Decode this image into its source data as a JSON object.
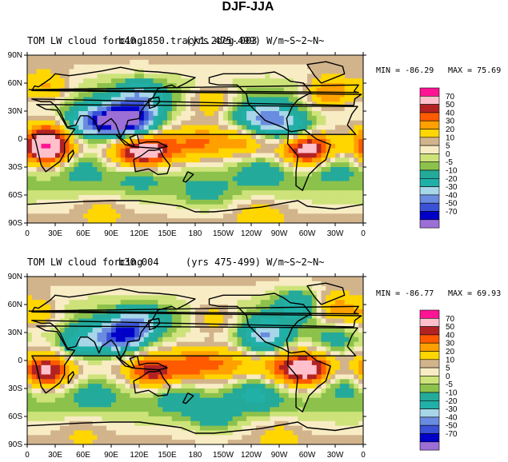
{
  "figure": {
    "title": "DJF-JJA"
  },
  "colors": {
    "levels": [
      -70,
      -60,
      -50,
      -40,
      -30,
      -20,
      -10,
      -5,
      0,
      5,
      10,
      20,
      30,
      40,
      50,
      70
    ],
    "fill": [
      "#9b6fd6",
      "#0000c8",
      "#3a52d6",
      "#6a8ce0",
      "#a7d6e8",
      "#21b0a8",
      "#24aa9a",
      "#8cc24b",
      "#cde37a",
      "#f8ecc4",
      "#d2b48c",
      "#ffd600",
      "#ffa000",
      "#ff5a00",
      "#b22222",
      "#ffc0cb",
      "#ff1493"
    ]
  },
  "chart_data": [
    {
      "type": "heatmap",
      "title": "TOM LW cloud forcing",
      "subtitle": "b40.1850.track1.2deg.003",
      "title_right": "(yrs 475-499) W/m~S~2~N~",
      "stats": {
        "min": "MIN = -86.29",
        "max": "MAX =  75.69"
      },
      "legend_labels": [
        "70",
        "50",
        "40",
        "30",
        "20",
        "10",
        "5",
        "0",
        "-5",
        "-10",
        "-20",
        "-30",
        "-40",
        "-50",
        "-70"
      ],
      "x_ticks": [
        "0",
        "30E",
        "60E",
        "90E",
        "120E",
        "150E",
        "180",
        "150W",
        "120W",
        "90W",
        "60W",
        "30W",
        "0"
      ],
      "y_ticks": [
        "90N",
        "60N",
        "30N",
        "0",
        "30S",
        "60S",
        "90S"
      ],
      "xlim": [
        0,
        360
      ],
      "ylim": [
        -90,
        90
      ],
      "anomalies": [
        {
          "lon": 20,
          "lat": -12,
          "v": 55
        },
        {
          "lon": 25,
          "lat": 5,
          "v": 30
        },
        {
          "lon": 300,
          "lat": -10,
          "v": 60
        },
        {
          "lon": 115,
          "lat": -15,
          "v": 40
        },
        {
          "lon": 140,
          "lat": -12,
          "v": 35
        },
        {
          "lon": 185,
          "lat": -5,
          "v": 25
        },
        {
          "lon": 230,
          "lat": -3,
          "v": 18
        },
        {
          "lon": 200,
          "lat": 40,
          "v": 25
        },
        {
          "lon": 325,
          "lat": 50,
          "v": 35
        },
        {
          "lon": 20,
          "lat": 55,
          "v": 25
        },
        {
          "lon": 60,
          "lat": 15,
          "v": -35
        },
        {
          "lon": 90,
          "lat": 20,
          "v": -60
        },
        {
          "lon": 115,
          "lat": 20,
          "v": -55
        },
        {
          "lon": 120,
          "lat": 45,
          "v": -30
        },
        {
          "lon": 260,
          "lat": 20,
          "v": -45
        },
        {
          "lon": 290,
          "lat": 8,
          "v": -25
        },
        {
          "lon": 230,
          "lat": 25,
          "v": -15
        },
        {
          "lon": 60,
          "lat": -30,
          "v": -12
        },
        {
          "lon": 120,
          "lat": -40,
          "v": -10
        },
        {
          "lon": 250,
          "lat": -35,
          "v": -15
        },
        {
          "lon": 330,
          "lat": -30,
          "v": -12
        },
        {
          "lon": 190,
          "lat": -60,
          "v": -12
        },
        {
          "lon": 80,
          "lat": -75,
          "v": 10
        },
        {
          "lon": 250,
          "lat": -80,
          "v": 12
        }
      ]
    },
    {
      "type": "heatmap",
      "title": "TOM LW cloud forcing",
      "subtitle": "b30.004",
      "title_right": "(yrs 475-499)  W/m~S~2~N~",
      "stats": {
        "min": "MIN = -86.77",
        "max": "MAX =  69.93"
      },
      "legend_labels": [
        "70",
        "50",
        "40",
        "30",
        "20",
        "10",
        "5",
        "0",
        "-5",
        "-10",
        "-20",
        "-30",
        "-40",
        "-50",
        "-70"
      ],
      "x_ticks": [
        "0",
        "30E",
        "60E",
        "90E",
        "120E",
        "150E",
        "180",
        "150W",
        "120W",
        "90W",
        "60W",
        "30W",
        "0"
      ],
      "y_ticks": [
        "90N",
        "60N",
        "30N",
        "0",
        "30S",
        "60S",
        "90S"
      ],
      "xlim": [
        0,
        360
      ],
      "ylim": [
        -90,
        90
      ],
      "anomalies": [
        {
          "lon": 20,
          "lat": -12,
          "v": 50
        },
        {
          "lon": 300,
          "lat": -10,
          "v": 55
        },
        {
          "lon": 135,
          "lat": -12,
          "v": 45
        },
        {
          "lon": 180,
          "lat": -5,
          "v": 28
        },
        {
          "lon": 215,
          "lat": -5,
          "v": 18
        },
        {
          "lon": 270,
          "lat": -8,
          "v": 20
        },
        {
          "lon": 200,
          "lat": 45,
          "v": 20
        },
        {
          "lon": 330,
          "lat": 55,
          "v": 28
        },
        {
          "lon": 10,
          "lat": 50,
          "v": 22
        },
        {
          "lon": 60,
          "lat": 18,
          "v": -30
        },
        {
          "lon": 100,
          "lat": 25,
          "v": -55
        },
        {
          "lon": 120,
          "lat": 40,
          "v": -30
        },
        {
          "lon": 255,
          "lat": 25,
          "v": -40
        },
        {
          "lon": 290,
          "lat": 60,
          "v": -25
        },
        {
          "lon": 330,
          "lat": 20,
          "v": -15
        },
        {
          "lon": 70,
          "lat": -35,
          "v": -12
        },
        {
          "lon": 160,
          "lat": -40,
          "v": -12
        },
        {
          "lon": 245,
          "lat": -35,
          "v": -20
        },
        {
          "lon": 340,
          "lat": -25,
          "v": -12
        },
        {
          "lon": 200,
          "lat": -62,
          "v": -15
        },
        {
          "lon": 60,
          "lat": -75,
          "v": 8
        },
        {
          "lon": 270,
          "lat": -80,
          "v": 10
        }
      ]
    }
  ]
}
